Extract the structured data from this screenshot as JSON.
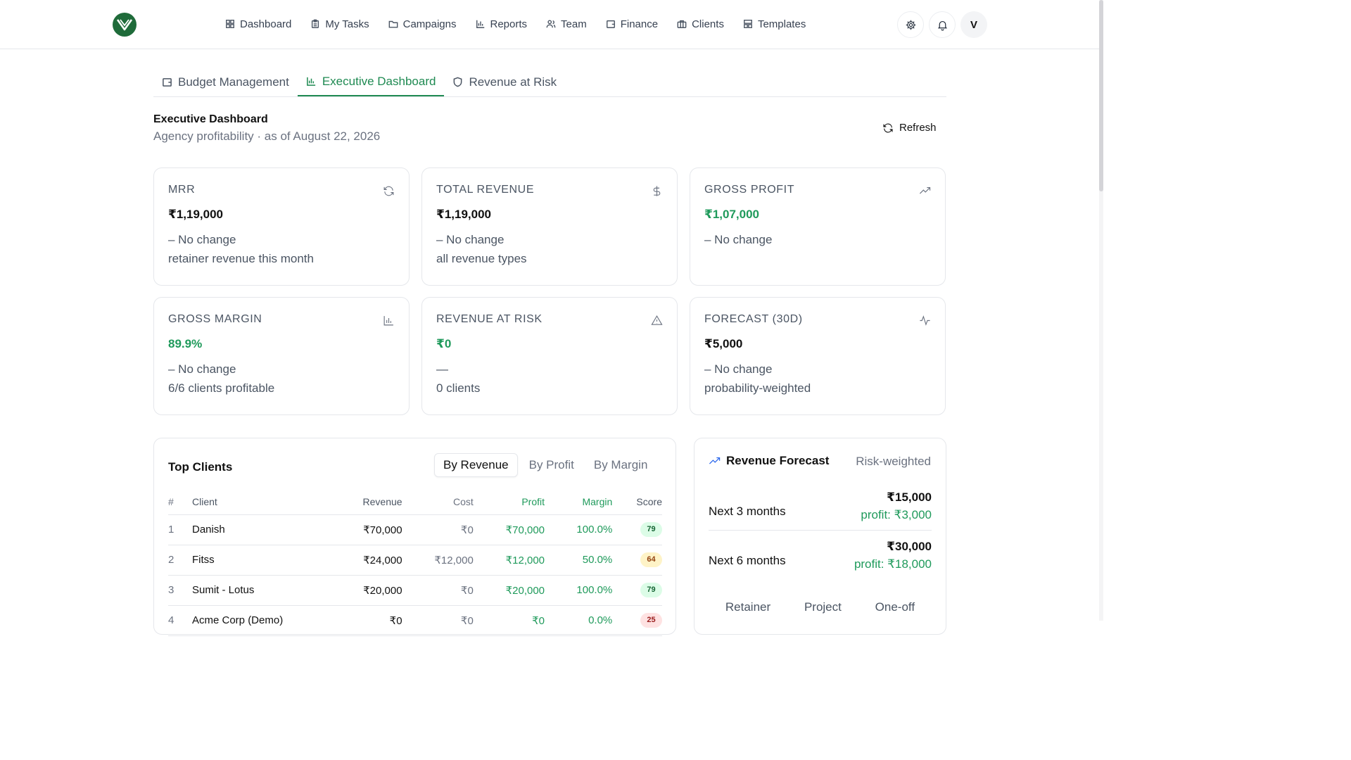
{
  "nav": {
    "items": [
      {
        "label": "Dashboard",
        "icon": "grid-icon"
      },
      {
        "label": "My Tasks",
        "icon": "clipboard-icon"
      },
      {
        "label": "Campaigns",
        "icon": "folder-icon"
      },
      {
        "label": "Reports",
        "icon": "bar-chart-icon"
      },
      {
        "label": "Team",
        "icon": "users-icon"
      },
      {
        "label": "Finance",
        "icon": "wallet-icon"
      },
      {
        "label": "Clients",
        "icon": "briefcase-icon"
      },
      {
        "label": "Templates",
        "icon": "layout-icon"
      }
    ],
    "avatar_initial": "V"
  },
  "tabs": [
    {
      "label": "Budget Management",
      "icon": "wallet-icon"
    },
    {
      "label": "Executive Dashboard",
      "icon": "bar-chart-icon",
      "active": true
    },
    {
      "label": "Revenue at Risk",
      "icon": "shield-icon"
    }
  ],
  "header": {
    "title": "Executive Dashboard",
    "subtitle": "Agency profitability · as of August 22, 2026",
    "refresh_label": "Refresh"
  },
  "kpis": [
    {
      "label": "MRR",
      "value": "₹1,19,000",
      "change": "– No change",
      "note": "retainer revenue this month",
      "icon": "refresh-icon"
    },
    {
      "label": "TOTAL REVENUE",
      "value": "₹1,19,000",
      "change": "– No change",
      "note": "all revenue types",
      "icon": "dollar-icon"
    },
    {
      "label": "GROSS PROFIT",
      "value": "₹1,07,000",
      "change": "– No change",
      "note": "",
      "icon": "trending-up-icon"
    },
    {
      "label": "GROSS MARGIN",
      "value": "89.9%",
      "change": "– No change",
      "note": "6/6 clients profitable",
      "icon": "bar-chart-icon"
    },
    {
      "label": "REVENUE AT RISK",
      "value": "₹0",
      "change": "—",
      "note": "0 clients",
      "icon": "alert-triangle-icon"
    },
    {
      "label": "FORECAST (30D)",
      "value": "₹5,000",
      "change": "– No change",
      "note": "probability-weighted",
      "icon": "activity-icon"
    }
  ],
  "top_clients": {
    "title": "Top Clients",
    "sort_options": [
      "By Revenue",
      "By Profit",
      "By Margin"
    ],
    "active_sort": "By Revenue",
    "columns": [
      "#",
      "Client",
      "Revenue",
      "Cost",
      "Profit",
      "Margin",
      "Score"
    ],
    "rows": [
      {
        "rank": "1",
        "client": "Danish",
        "revenue": "₹70,000",
        "cost": "₹0",
        "profit": "₹70,000",
        "margin": "100.0%",
        "score": "79"
      },
      {
        "rank": "2",
        "client": "Fitss",
        "revenue": "₹24,000",
        "cost": "₹12,000",
        "profit": "₹12,000",
        "margin": "50.0%",
        "score": "64"
      },
      {
        "rank": "3",
        "client": "Sumit - Lotus",
        "revenue": "₹20,000",
        "cost": "₹0",
        "profit": "₹20,000",
        "margin": "100.0%",
        "score": "79"
      },
      {
        "rank": "4",
        "client": "Acme Corp (Demo)",
        "revenue": "₹0",
        "cost": "₹0",
        "profit": "₹0",
        "margin": "0.0%",
        "score": "25"
      }
    ]
  },
  "forecast": {
    "title": "Revenue Forecast",
    "tag": "Risk-weighted",
    "rows": [
      {
        "label": "Next 3 months",
        "value": "₹15,000",
        "profit": "profit: ₹3,000"
      },
      {
        "label": "Next 6 months",
        "value": "₹30,000",
        "profit": "profit: ₹18,000"
      }
    ],
    "type_tabs": [
      "Retainer",
      "Project",
      "One-off"
    ]
  }
}
